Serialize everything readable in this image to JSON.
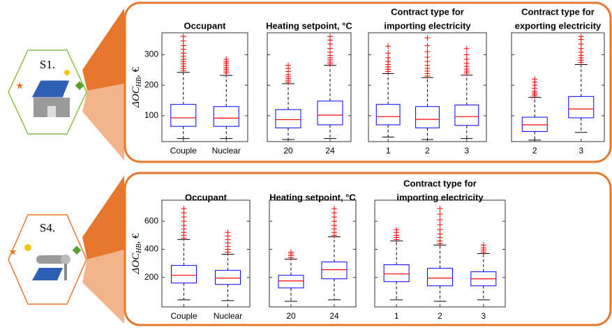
{
  "scenarios": [
    "S1.",
    "S4."
  ],
  "chart_data": [
    {
      "type": "box",
      "title": [
        "Occupant"
      ],
      "ylabel": "ΔOC",
      "ylabel_sub": "HB",
      "ylabel_suffix": ", €",
      "categories": [
        "Couple",
        "Nuclear"
      ],
      "ylim": [
        15,
        372
      ],
      "yticks": [
        100,
        200,
        300
      ],
      "box_color": "#0000ff",
      "median_color": "#ff0000",
      "flier_color": "#ff0000",
      "boxes": [
        {
          "whislo": 25,
          "q1": 65,
          "med": 93,
          "q3": 137,
          "whishi": 242,
          "fliers": [
            248,
            255,
            262,
            270,
            278,
            285,
            295,
            305,
            318,
            330,
            345,
            360
          ]
        },
        {
          "whislo": 25,
          "q1": 65,
          "med": 92,
          "q3": 130,
          "whishi": 232,
          "fliers": [
            240,
            246,
            252,
            258,
            265,
            272,
            278,
            285
          ]
        }
      ]
    },
    {
      "type": "box",
      "title": [
        "Heating setpoint, °C"
      ],
      "categories": [
        "20",
        "24"
      ],
      "ylim": [
        15,
        372
      ],
      "yticks": [
        100,
        200,
        300
      ],
      "box_color": "#0000ff",
      "median_color": "#ff0000",
      "flier_color": "#ff0000",
      "boxes": [
        {
          "whislo": 22,
          "q1": 60,
          "med": 87,
          "q3": 120,
          "whishi": 205,
          "fliers": [
            210,
            216,
            222,
            228,
            235,
            245,
            255,
            265
          ]
        },
        {
          "whislo": 25,
          "q1": 70,
          "med": 102,
          "q3": 148,
          "whishi": 265,
          "fliers": [
            270,
            276,
            283,
            290,
            298,
            308,
            320,
            335,
            348,
            360
          ]
        }
      ]
    },
    {
      "type": "box",
      "title": [
        "Contract type for",
        "importing electricity"
      ],
      "categories": [
        "1",
        "2",
        "3"
      ],
      "ylim": [
        15,
        372
      ],
      "yticks": [
        100,
        200,
        300
      ],
      "box_color": "#0000ff",
      "median_color": "#ff0000",
      "flier_color": "#ff0000",
      "boxes": [
        {
          "whislo": 30,
          "q1": 70,
          "med": 97,
          "q3": 137,
          "whishi": 238,
          "fliers": [
            245,
            252,
            260,
            268,
            278,
            290,
            305,
            328
          ]
        },
        {
          "whislo": 22,
          "q1": 60,
          "med": 88,
          "q3": 130,
          "whishi": 225,
          "fliers": [
            230,
            238,
            246,
            255,
            265,
            278,
            292,
            310,
            330,
            355
          ]
        },
        {
          "whislo": 25,
          "q1": 68,
          "med": 97,
          "q3": 135,
          "whishi": 233,
          "fliers": [
            240,
            246,
            253,
            262,
            272,
            285,
            300,
            320
          ]
        }
      ]
    },
    {
      "type": "box",
      "title": [
        "Contract type for",
        "exporting electricity"
      ],
      "categories": [
        "2",
        "3"
      ],
      "ylim": [
        15,
        372
      ],
      "yticks": [
        100,
        200,
        300
      ],
      "box_color": "#0000ff",
      "median_color": "#ff0000",
      "flier_color": "#ff0000",
      "boxes": [
        {
          "whislo": 20,
          "q1": 48,
          "med": 70,
          "q3": 95,
          "whishi": 160,
          "fliers": [
            165,
            170,
            175,
            180,
            190,
            200,
            210,
            220
          ]
        },
        {
          "whislo": 45,
          "q1": 93,
          "med": 122,
          "q3": 163,
          "whishi": 268,
          "fliers": [
            275,
            282,
            290,
            298,
            308,
            320,
            335,
            350,
            360
          ]
        }
      ]
    },
    {
      "type": "box",
      "title": [
        "Occupant"
      ],
      "ylabel": "ΔOC",
      "ylabel_sub": "HB",
      "ylabel_suffix": ", €",
      "categories": [
        "Couple",
        "Nuclear"
      ],
      "ylim": [
        -10,
        750
      ],
      "yticks": [
        200,
        400,
        600
      ],
      "box_color": "#0000ff",
      "median_color": "#ff0000",
      "flier_color": "#ff0000",
      "boxes": [
        {
          "whislo": 40,
          "q1": 160,
          "med": 215,
          "q3": 285,
          "whishi": 470,
          "fliers": [
            480,
            500,
            520,
            545,
            570,
            600,
            630,
            660,
            690
          ]
        },
        {
          "whislo": 35,
          "q1": 150,
          "med": 195,
          "q3": 250,
          "whishi": 365,
          "fliers": [
            380,
            400,
            420,
            445,
            470,
            495,
            520
          ]
        }
      ]
    },
    {
      "type": "box",
      "title": [
        "Heating setpoint, °C"
      ],
      "categories": [
        "20",
        "24"
      ],
      "ylim": [
        -10,
        750
      ],
      "yticks": [
        200,
        400,
        600
      ],
      "box_color": "#0000ff",
      "median_color": "#ff0000",
      "flier_color": "#ff0000",
      "boxes": [
        {
          "whislo": 30,
          "q1": 125,
          "med": 175,
          "q3": 215,
          "whishi": 330,
          "fliers": [
            340,
            355,
            368,
            380
          ]
        },
        {
          "whislo": 40,
          "q1": 190,
          "med": 255,
          "q3": 310,
          "whishi": 490,
          "fliers": [
            500,
            520,
            545,
            570,
            600,
            630,
            660,
            690
          ]
        }
      ]
    },
    {
      "type": "box",
      "title": [
        "Contract type for",
        "importing electricity"
      ],
      "categories": [
        "1",
        "2",
        "3"
      ],
      "ylim": [
        -10,
        750
      ],
      "yticks": [
        200,
        400,
        600
      ],
      "box_color": "#0000ff",
      "median_color": "#ff0000",
      "flier_color": "#ff0000",
      "boxes": [
        {
          "whislo": 40,
          "q1": 170,
          "med": 225,
          "q3": 290,
          "whishi": 460,
          "fliers": [
            470,
            485,
            500,
            520,
            540
          ]
        },
        {
          "whislo": 30,
          "q1": 140,
          "med": 195,
          "q3": 265,
          "whishi": 430,
          "fliers": [
            440,
            460,
            485,
            510,
            540,
            575,
            610,
            650,
            690
          ]
        },
        {
          "whislo": 40,
          "q1": 140,
          "med": 190,
          "q3": 240,
          "whishi": 370,
          "fliers": [
            380,
            395,
            410,
            430
          ]
        }
      ]
    }
  ]
}
